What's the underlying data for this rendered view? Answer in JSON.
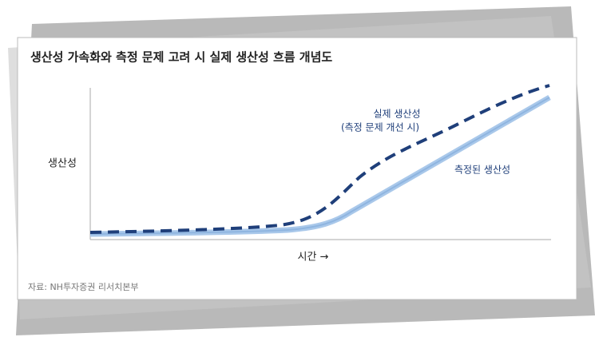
{
  "header": {
    "title": "생산성 가속화와 측정 문제 고려 시 실제 생산성 흐름 개념도"
  },
  "axes": {
    "y_label": "생산성",
    "x_label": "시간 →"
  },
  "curves": [
    {
      "label": "실제 생산성",
      "sublabel": "(측정 문제 개선 시)"
    },
    {
      "label": "측정된 생산성"
    }
  ],
  "footer": {
    "source": "자료: NH투자증권 리서치본부"
  }
}
